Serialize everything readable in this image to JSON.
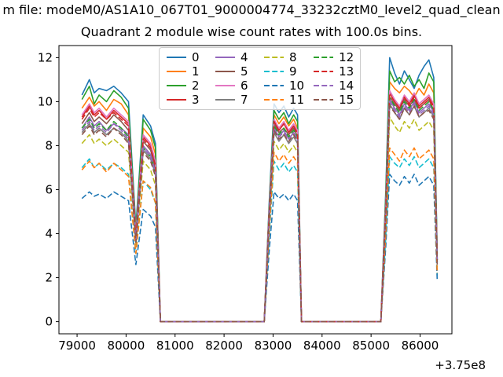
{
  "figure": {
    "suptitle": "m file: modeM0/AS1A10_067T01_9000004774_33232cztM0_level2_quad_clean",
    "axes_title": "Quadrant 2 module wise count rates with 100.0s bins.",
    "x_offset_label": "+3.75e8",
    "background": "#ffffff"
  },
  "chart_data": {
    "type": "line",
    "title": "Quadrant 2 module wise count rates with 100.0s bins.",
    "xlabel": "",
    "ylabel": "",
    "x_axis_offset_text": "+3.75e8",
    "xlim": [
      78630,
      86650
    ],
    "ylim": [
      -0.55,
      12.55
    ],
    "xticks": [
      79000,
      80000,
      81000,
      82000,
      83000,
      84000,
      85000,
      86000
    ],
    "yticks": [
      0,
      2,
      4,
      6,
      8,
      10,
      12
    ],
    "grid": false,
    "legend_position": "upper center",
    "bin_seconds": 100.0,
    "x": [
      79100,
      79250,
      79350,
      79450,
      79600,
      79750,
      79900,
      80050,
      80200,
      80350,
      80500,
      80600,
      80700,
      80780,
      82820,
      82920,
      83020,
      83120,
      83220,
      83320,
      83420,
      83500,
      83580,
      85200,
      85300,
      85380,
      85480,
      85580,
      85680,
      85780,
      85880,
      85980,
      86080,
      86180,
      86280,
      86350
    ],
    "series": [
      {
        "name": "0",
        "color": "#1f77b4",
        "dashed": false,
        "values": [
          10.3,
          11.0,
          10.4,
          10.6,
          10.5,
          10.7,
          10.4,
          10.0,
          4.3,
          9.4,
          8.9,
          8.1,
          0,
          0,
          0,
          5.4,
          9.9,
          9.5,
          9.8,
          9.3,
          9.7,
          9.4,
          0,
          0,
          5.9,
          12.0,
          11.3,
          10.8,
          11.4,
          11.0,
          10.6,
          11.2,
          11.6,
          11.9,
          11.1,
          3.1
        ]
      },
      {
        "name": "1",
        "color": "#ff7f0e",
        "dashed": false,
        "values": [
          9.7,
          10.2,
          9.8,
          10.0,
          9.6,
          10.1,
          9.9,
          9.4,
          4.0,
          8.8,
          8.4,
          7.6,
          0,
          0,
          0,
          5.1,
          9.4,
          9.0,
          9.3,
          8.9,
          9.2,
          8.8,
          0,
          0,
          5.5,
          10.9,
          10.6,
          10.4,
          10.7,
          10.5,
          10.2,
          10.6,
          10.3,
          10.8,
          10.4,
          2.9
        ]
      },
      {
        "name": "2",
        "color": "#2ca02c",
        "dashed": false,
        "values": [
          10.1,
          10.7,
          9.9,
          10.3,
          10.0,
          10.5,
          10.2,
          9.7,
          4.1,
          9.2,
          8.7,
          7.9,
          0,
          0,
          0,
          5.2,
          9.6,
          9.2,
          9.5,
          9.0,
          9.4,
          9.1,
          0,
          0,
          5.7,
          11.4,
          10.9,
          11.1,
          10.8,
          11.2,
          10.7,
          11.0,
          10.6,
          11.3,
          10.9,
          3.0
        ]
      },
      {
        "name": "3",
        "color": "#d62728",
        "dashed": false,
        "values": [
          9.3,
          9.8,
          9.4,
          9.6,
          9.2,
          9.6,
          9.3,
          9.0,
          3.9,
          8.4,
          8.0,
          7.2,
          0,
          0,
          0,
          4.9,
          9.1,
          8.7,
          9.0,
          8.6,
          8.9,
          8.6,
          0,
          0,
          5.2,
          10.4,
          10.0,
          9.7,
          10.2,
          9.9,
          10.3,
          9.8,
          10.0,
          10.2,
          9.8,
          2.8
        ]
      },
      {
        "name": "4",
        "color": "#9467bd",
        "dashed": false,
        "values": [
          8.8,
          9.3,
          8.9,
          9.1,
          8.7,
          9.0,
          8.8,
          8.5,
          3.7,
          8.0,
          7.6,
          6.9,
          0,
          0,
          0,
          4.7,
          8.8,
          8.4,
          8.7,
          8.3,
          8.6,
          8.3,
          0,
          0,
          5.0,
          10.1,
          9.7,
          9.4,
          9.9,
          9.6,
          10.0,
          9.5,
          9.7,
          9.9,
          9.5,
          2.7
        ]
      },
      {
        "name": "5",
        "color": "#8c564b",
        "dashed": false,
        "values": [
          9.0,
          9.5,
          9.1,
          9.3,
          9.0,
          9.4,
          9.1,
          8.7,
          3.8,
          8.2,
          7.8,
          7.0,
          0,
          0,
          0,
          4.8,
          9.0,
          8.6,
          8.8,
          8.5,
          8.8,
          8.4,
          0,
          0,
          5.1,
          10.2,
          9.9,
          9.6,
          10.1,
          9.8,
          10.1,
          9.7,
          9.9,
          10.1,
          9.6,
          2.8
        ]
      },
      {
        "name": "6",
        "color": "#e377c2",
        "dashed": false,
        "values": [
          9.4,
          9.9,
          9.5,
          9.7,
          9.3,
          9.7,
          9.4,
          9.1,
          3.9,
          8.5,
          8.1,
          7.3,
          0,
          0,
          0,
          5.0,
          9.2,
          8.8,
          9.1,
          8.7,
          9.0,
          8.7,
          0,
          0,
          5.3,
          10.5,
          10.1,
          9.8,
          10.3,
          10.0,
          10.4,
          9.9,
          10.1,
          10.3,
          9.9,
          2.8
        ]
      },
      {
        "name": "7",
        "color": "#7f7f7f",
        "dashed": false,
        "values": [
          8.6,
          9.0,
          8.6,
          8.8,
          8.5,
          8.8,
          8.6,
          8.2,
          3.6,
          7.8,
          7.4,
          6.7,
          0,
          0,
          0,
          4.6,
          8.6,
          8.2,
          8.5,
          8.1,
          8.4,
          8.1,
          0,
          0,
          4.9,
          9.9,
          9.5,
          9.2,
          9.7,
          9.4,
          9.8,
          9.3,
          9.5,
          9.7,
          9.3,
          2.7
        ]
      },
      {
        "name": "8",
        "color": "#bcbd22",
        "dashed": true,
        "values": [
          8.1,
          8.5,
          8.1,
          8.3,
          8.0,
          8.3,
          8.0,
          7.7,
          3.5,
          7.3,
          6.9,
          6.2,
          0,
          0,
          0,
          4.4,
          8.2,
          7.8,
          8.1,
          7.7,
          8.0,
          7.7,
          0,
          0,
          4.6,
          9.3,
          8.9,
          8.6,
          9.1,
          8.8,
          9.2,
          8.7,
          8.9,
          9.1,
          8.7,
          2.5
        ]
      },
      {
        "name": "9",
        "color": "#17becf",
        "dashed": true,
        "values": [
          7.0,
          7.4,
          7.0,
          7.2,
          6.9,
          7.2,
          7.0,
          6.7,
          3.1,
          6.4,
          6.0,
          5.4,
          0,
          0,
          0,
          3.9,
          7.3,
          6.9,
          7.2,
          6.8,
          7.1,
          6.8,
          0,
          0,
          3.8,
          7.5,
          7.2,
          7.0,
          7.4,
          7.1,
          7.5,
          7.0,
          7.2,
          7.4,
          7.0,
          2.1
        ]
      },
      {
        "name": "10",
        "color": "#1f77b4",
        "dashed": true,
        "values": [
          5.6,
          5.9,
          5.7,
          5.8,
          5.6,
          5.9,
          5.7,
          5.5,
          2.6,
          5.1,
          4.8,
          4.3,
          0,
          0,
          0,
          3.2,
          5.9,
          5.6,
          5.8,
          5.5,
          5.8,
          5.5,
          0,
          0,
          3.4,
          6.7,
          6.4,
          6.2,
          6.6,
          6.3,
          6.7,
          6.2,
          6.4,
          6.6,
          6.2,
          1.9
        ]
      },
      {
        "name": "11",
        "color": "#ff7f0e",
        "dashed": true,
        "values": [
          6.9,
          7.3,
          7.0,
          7.2,
          6.8,
          7.2,
          6.9,
          6.6,
          3.1,
          6.4,
          6.1,
          5.4,
          0,
          0,
          0,
          4.1,
          7.7,
          7.3,
          7.6,
          7.2,
          7.5,
          7.2,
          0,
          0,
          4.0,
          7.9,
          7.6,
          7.3,
          7.8,
          7.5,
          7.9,
          7.4,
          7.6,
          7.8,
          7.4,
          2.2
        ]
      },
      {
        "name": "12",
        "color": "#2ca02c",
        "dashed": true,
        "values": [
          8.8,
          9.2,
          8.8,
          9.0,
          8.7,
          9.1,
          8.8,
          8.4,
          3.7,
          7.9,
          7.5,
          6.8,
          0,
          0,
          0,
          4.7,
          8.9,
          8.5,
          8.8,
          8.4,
          8.7,
          8.4,
          0,
          0,
          5.0,
          10.2,
          9.8,
          9.5,
          10.0,
          9.7,
          10.1,
          9.6,
          9.8,
          10.0,
          9.6,
          2.8
        ]
      },
      {
        "name": "13",
        "color": "#d62728",
        "dashed": true,
        "values": [
          9.2,
          9.7,
          9.3,
          9.5,
          9.2,
          9.5,
          9.2,
          8.9,
          3.8,
          8.3,
          7.9,
          7.1,
          0,
          0,
          0,
          4.9,
          9.1,
          8.7,
          9.0,
          8.6,
          8.9,
          8.5,
          0,
          0,
          5.2,
          10.3,
          10.0,
          9.7,
          10.2,
          9.8,
          10.2,
          9.7,
          9.9,
          10.1,
          9.7,
          2.8
        ]
      },
      {
        "name": "14",
        "color": "#9467bd",
        "dashed": true,
        "values": [
          8.7,
          9.1,
          8.7,
          8.9,
          8.6,
          9.0,
          8.7,
          8.3,
          3.6,
          7.9,
          7.5,
          6.8,
          0,
          0,
          0,
          4.7,
          8.8,
          8.4,
          8.6,
          8.3,
          8.6,
          8.3,
          0,
          0,
          4.9,
          10.0,
          9.6,
          9.3,
          9.8,
          9.5,
          9.9,
          9.4,
          9.6,
          9.8,
          9.4,
          2.7
        ]
      },
      {
        "name": "15",
        "color": "#8c564b",
        "dashed": true,
        "values": [
          8.5,
          8.9,
          8.5,
          8.7,
          8.4,
          8.8,
          8.5,
          8.1,
          3.6,
          7.7,
          7.3,
          6.6,
          0,
          0,
          0,
          4.6,
          8.7,
          8.3,
          8.5,
          8.2,
          8.5,
          8.2,
          0,
          0,
          4.8,
          9.8,
          9.5,
          9.2,
          9.7,
          9.4,
          9.8,
          9.3,
          9.5,
          9.6,
          9.2,
          2.6
        ]
      }
    ]
  }
}
